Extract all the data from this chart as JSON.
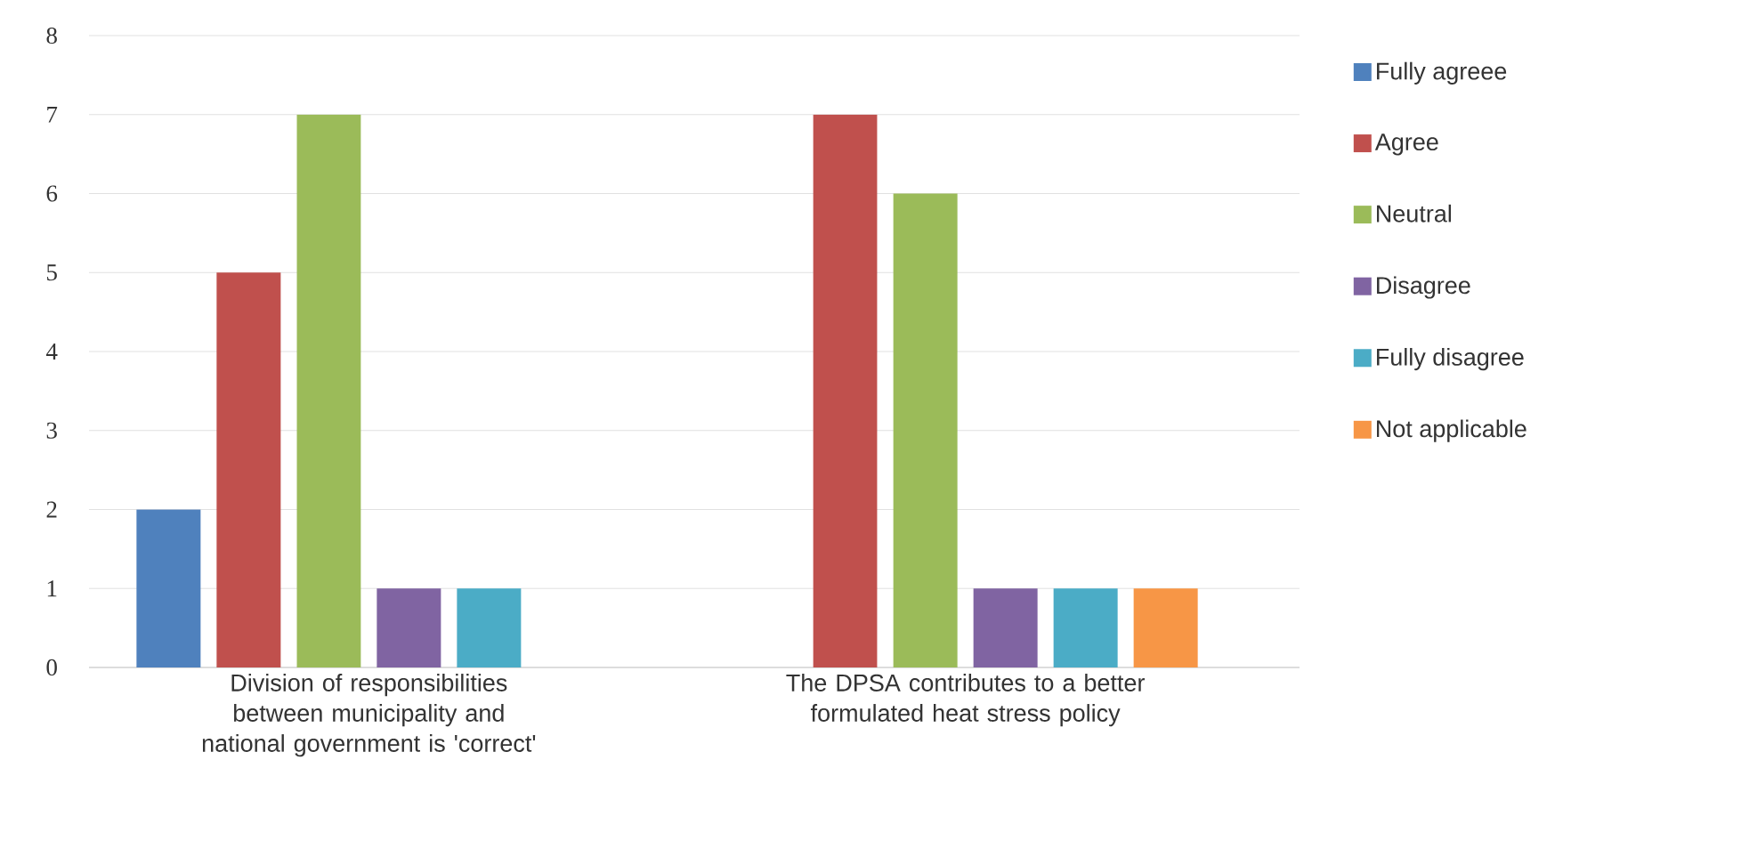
{
  "chart_data": {
    "type": "bar",
    "categories": [
      "Division of responsibilities between municipality and national government is 'correct'",
      "The DPSA contributes to a better formulated heat stress policy"
    ],
    "series": [
      {
        "name": "Fully agreee",
        "color": "#4f81bd",
        "values": [
          2,
          0
        ]
      },
      {
        "name": "Agree",
        "color": "#c0504d",
        "values": [
          5,
          7
        ]
      },
      {
        "name": "Neutral",
        "color": "#9bbb59",
        "values": [
          7,
          6
        ]
      },
      {
        "name": "Disagree",
        "color": "#8064a2",
        "values": [
          1,
          1
        ]
      },
      {
        "name": "Fully disagree",
        "color": "#4bacc6",
        "values": [
          1,
          1
        ]
      },
      {
        "name": "Not applicable",
        "color": "#f79646",
        "values": [
          0,
          1
        ]
      }
    ],
    "ylim": [
      0,
      8
    ],
    "yticks": [
      0,
      1,
      2,
      3,
      4,
      5,
      6,
      7,
      8
    ],
    "grid": "y",
    "legend": "right"
  }
}
